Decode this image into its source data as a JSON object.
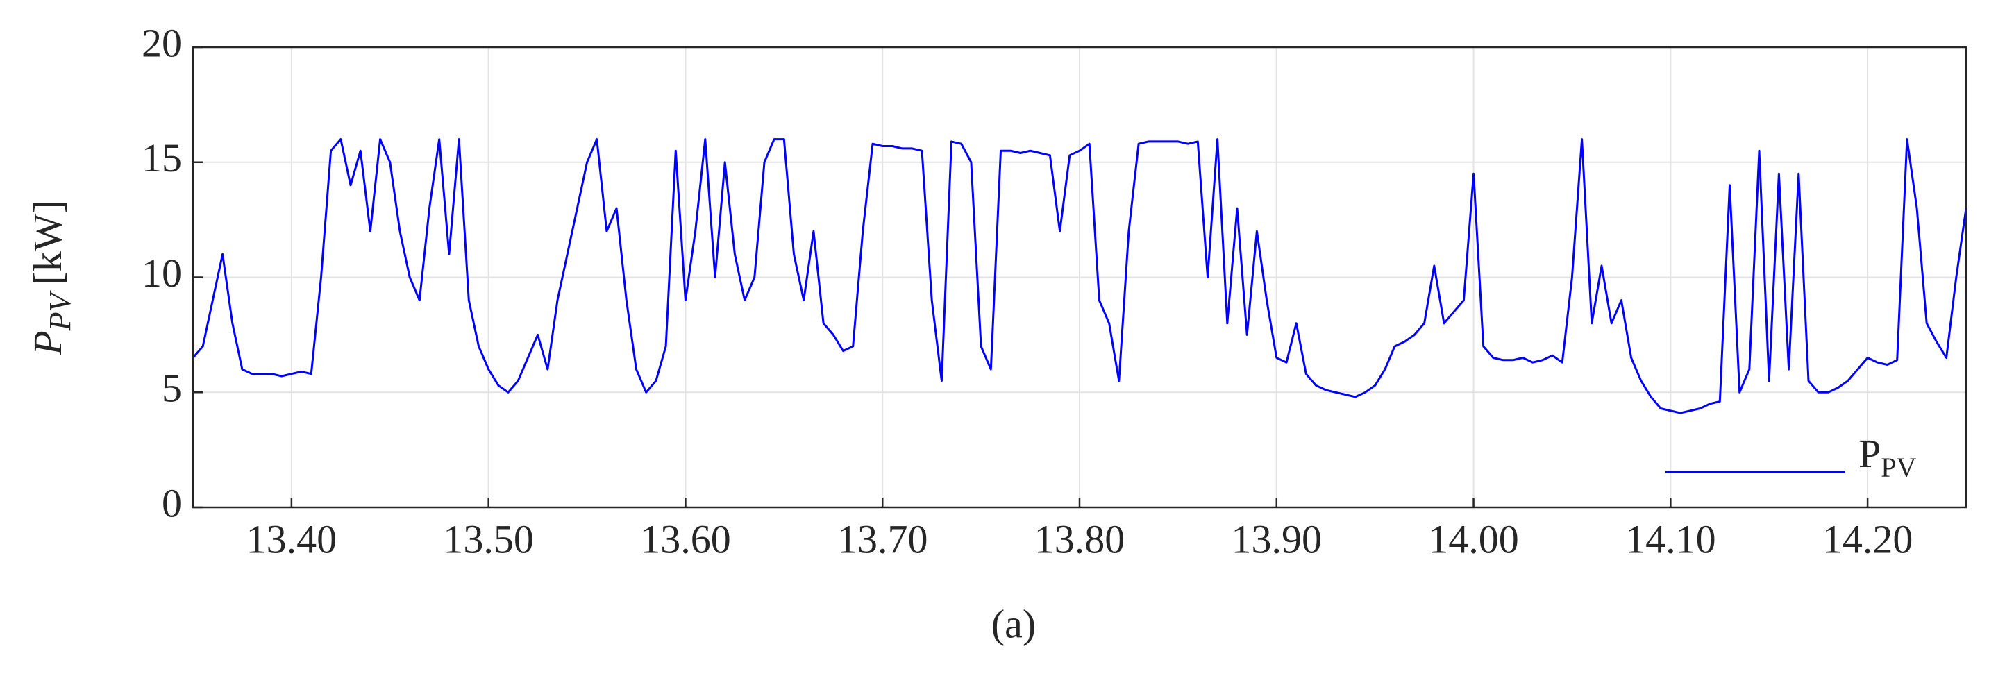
{
  "chart_data": {
    "type": "line",
    "ylabel": {
      "symbol": "P",
      "subscript": "PV",
      "unit": "[kW]"
    },
    "caption": "(a)",
    "x": [
      13.35,
      13.355,
      13.36,
      13.365,
      13.37,
      13.375,
      13.38,
      13.385,
      13.39,
      13.395,
      13.4,
      13.405,
      13.41,
      13.415,
      13.42,
      13.425,
      13.43,
      13.435,
      13.44,
      13.445,
      13.45,
      13.455,
      13.46,
      13.465,
      13.47,
      13.475,
      13.48,
      13.485,
      13.49,
      13.495,
      13.5,
      13.505,
      13.51,
      13.515,
      13.52,
      13.525,
      13.53,
      13.535,
      13.54,
      13.545,
      13.55,
      13.555,
      13.56,
      13.565,
      13.57,
      13.575,
      13.58,
      13.585,
      13.59,
      13.595,
      13.6,
      13.605,
      13.61,
      13.615,
      13.62,
      13.625,
      13.63,
      13.635,
      13.64,
      13.645,
      13.65,
      13.655,
      13.66,
      13.665,
      13.67,
      13.675,
      13.68,
      13.685,
      13.69,
      13.695,
      13.7,
      13.705,
      13.71,
      13.715,
      13.72,
      13.725,
      13.73,
      13.735,
      13.74,
      13.745,
      13.75,
      13.755,
      13.76,
      13.765,
      13.77,
      13.775,
      13.78,
      13.785,
      13.79,
      13.795,
      13.8,
      13.805,
      13.81,
      13.815,
      13.82,
      13.825,
      13.83,
      13.835,
      13.84,
      13.845,
      13.85,
      13.855,
      13.86,
      13.865,
      13.87,
      13.875,
      13.88,
      13.885,
      13.89,
      13.895,
      13.9,
      13.905,
      13.91,
      13.915,
      13.92,
      13.925,
      13.93,
      13.935,
      13.94,
      13.945,
      13.95,
      13.955,
      13.96,
      13.965,
      13.97,
      13.975,
      13.98,
      13.985,
      13.99,
      13.995,
      14.0,
      14.005,
      14.01,
      14.015,
      14.02,
      14.025,
      14.03,
      14.035,
      14.04,
      14.045,
      14.05,
      14.055,
      14.06,
      14.065,
      14.07,
      14.075,
      14.08,
      14.085,
      14.09,
      14.095,
      14.1,
      14.105,
      14.11,
      14.115,
      14.12,
      14.125,
      14.13,
      14.135,
      14.14,
      14.145,
      14.15,
      14.155,
      14.16,
      14.165,
      14.17,
      14.175,
      14.18,
      14.185,
      14.19,
      14.195,
      14.2,
      14.205,
      14.21,
      14.215,
      14.22,
      14.225,
      14.23,
      14.235,
      14.24,
      14.245,
      14.25
    ],
    "series": [
      {
        "name": "P",
        "name_subscript": "PV",
        "color": "#0000ff",
        "values": [
          6.5,
          7,
          9,
          11,
          8,
          6,
          5.8,
          5.8,
          5.8,
          5.7,
          5.8,
          5.9,
          5.8,
          10,
          15.5,
          16,
          14,
          15.5,
          12,
          16,
          15,
          12,
          10,
          9,
          13,
          16,
          11,
          16,
          9,
          7,
          6,
          5.3,
          5,
          5.5,
          6.5,
          7.5,
          6,
          9,
          11,
          13,
          15,
          16,
          12,
          13,
          9,
          6,
          5,
          5.5,
          7,
          15.5,
          9,
          12,
          16,
          10,
          15,
          11,
          9,
          10,
          15,
          16,
          16,
          11,
          9,
          12,
          8,
          7.5,
          6.8,
          7,
          12,
          15.8,
          15.7,
          15.7,
          15.6,
          15.6,
          15.5,
          9,
          5.5,
          15.9,
          15.8,
          15,
          7,
          6,
          15.5,
          15.5,
          15.4,
          15.5,
          15.4,
          15.3,
          12,
          15.3,
          15.5,
          15.8,
          9,
          8,
          5.5,
          12,
          15.8,
          15.9,
          15.9,
          15.9,
          15.9,
          15.8,
          15.9,
          10,
          16,
          8,
          13,
          7.5,
          12,
          9,
          6.5,
          6.3,
          8,
          5.8,
          5.3,
          5.1,
          5,
          4.9,
          4.8,
          5,
          5.3,
          6,
          7,
          7.2,
          7.5,
          8,
          10.5,
          8,
          8.5,
          9,
          14.5,
          7,
          6.5,
          6.4,
          6.4,
          6.5,
          6.3,
          6.4,
          6.6,
          6.3,
          10,
          16,
          8,
          10.5,
          8,
          9,
          6.5,
          5.5,
          4.8,
          4.3,
          4.2,
          4.1,
          4.2,
          4.3,
          4.5,
          4.6,
          14,
          5,
          6,
          15.5,
          5.5,
          14.5,
          6,
          14.5,
          5.5,
          5,
          5,
          5.2,
          5.5,
          6,
          6.5,
          6.3,
          6.2,
          6.4,
          16,
          13,
          8,
          7.2,
          6.5,
          10,
          13
        ]
      }
    ],
    "xlim": [
      13.35,
      14.25
    ],
    "xticks": [
      {
        "value": 13.4,
        "label": "13.40"
      },
      {
        "value": 13.5,
        "label": "13.50"
      },
      {
        "value": 13.6,
        "label": "13.60"
      },
      {
        "value": 13.7,
        "label": "13.70"
      },
      {
        "value": 13.8,
        "label": "13.80"
      },
      {
        "value": 13.9,
        "label": "13.90"
      },
      {
        "value": 14.0,
        "label": "14.00"
      },
      {
        "value": 14.1,
        "label": "14.10"
      },
      {
        "value": 14.2,
        "label": "14.20"
      }
    ],
    "ylim": [
      0,
      20
    ],
    "yticks": [
      0,
      5,
      10,
      15,
      20
    ],
    "grid": true,
    "legend": "lower right"
  }
}
